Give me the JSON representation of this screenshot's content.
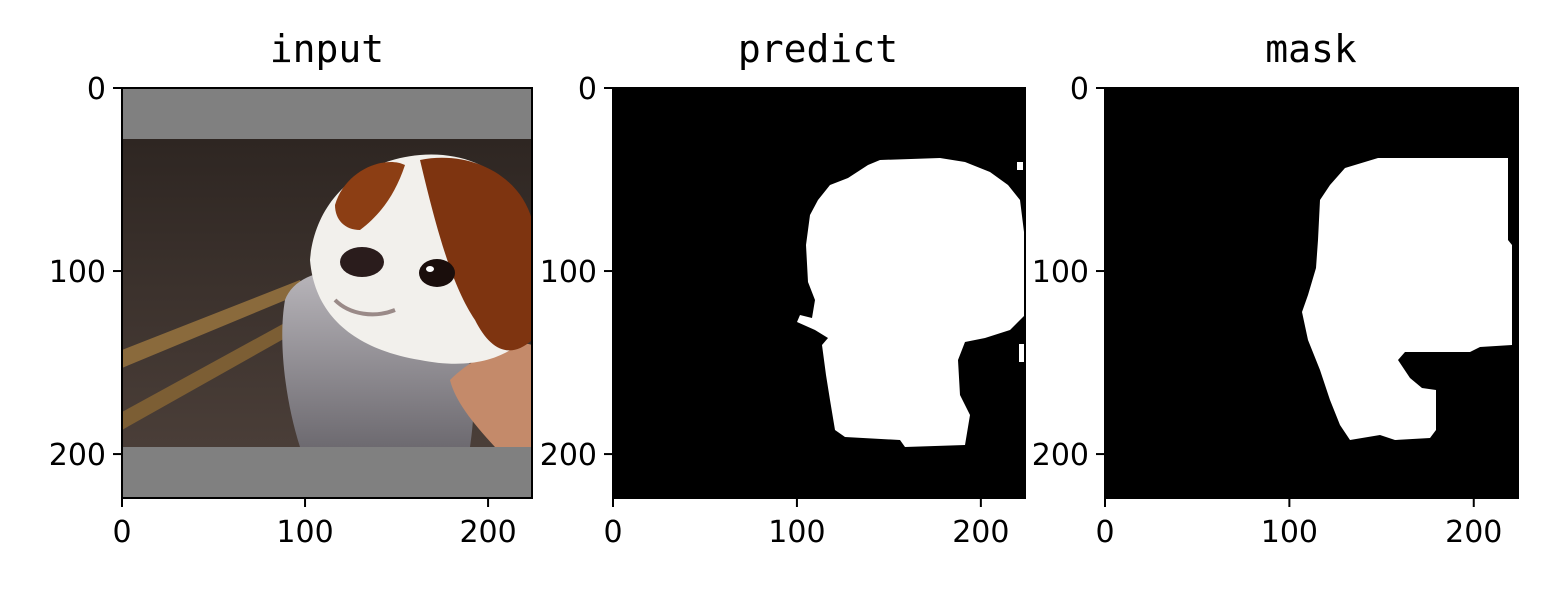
{
  "chart_data": [
    {
      "type": "image",
      "title": "input",
      "xticks": [
        0,
        100,
        200
      ],
      "yticks": [
        0,
        100,
        200
      ],
      "xlim": [
        0,
        224
      ],
      "ylim": [
        224,
        0
      ],
      "content": "photo of dog with gray padding bars",
      "colors": {
        "padding": "#808080",
        "frame": "#000000"
      }
    },
    {
      "type": "image",
      "title": "predict",
      "xticks": [
        0,
        100,
        200
      ],
      "yticks": [
        0,
        100,
        200
      ],
      "xlim": [
        0,
        224
      ],
      "ylim": [
        224,
        0
      ],
      "content": "binary segmentation mask",
      "colors": {
        "background": "#000000",
        "foreground": "#ffffff"
      }
    },
    {
      "type": "image",
      "title": "mask",
      "xticks": [
        0,
        100,
        200
      ],
      "yticks": [
        0,
        100,
        200
      ],
      "xlim": [
        0,
        224
      ],
      "ylim": [
        224,
        0
      ],
      "content": "binary ground truth mask",
      "colors": {
        "background": "#000000",
        "foreground": "#ffffff"
      }
    }
  ]
}
